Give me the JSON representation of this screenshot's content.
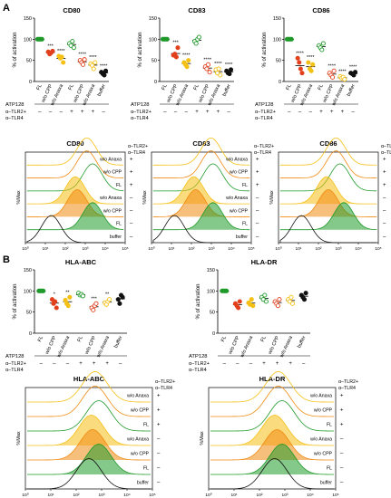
{
  "panels": [
    "A",
    "B"
  ],
  "colors": {
    "green": "#1f9a2a",
    "red": "#e2401c",
    "orange": "#f08a10",
    "yellow": "#f5c015",
    "black": "#111111"
  },
  "dot_ylabel": "% of activation",
  "hist_ylabel": "%Max",
  "conditions": [
    "FL",
    "w/o CPP",
    "w/o Anaxa",
    "FL",
    "w/o CPP",
    "w/o Anaxa",
    "buffer"
  ],
  "atp_label": "ATP128",
  "tlr_label": "α–TLR2+\nα–TLR4",
  "tlr_signs": [
    "–",
    "–",
    "–",
    "+",
    "+",
    "+",
    "–"
  ],
  "tick_labels_y": [
    "0",
    "50",
    "100",
    "150"
  ],
  "hist_x_ticks": [
    "10⁰",
    "10¹",
    "10²",
    "10³",
    "10⁴",
    "10⁵"
  ],
  "hist_rows": [
    "w/o Anaxa",
    "w/o CPP",
    "FL",
    "w/o Anaxa",
    "w/o CPP",
    "FL",
    "buffer"
  ],
  "hist_signs": [
    "+",
    "+",
    "+",
    "–",
    "–",
    "–",
    "–"
  ],
  "chart_data": [
    {
      "type": "scatter",
      "title": "CD80",
      "ylabel": "% of activation",
      "ylim": [
        0,
        150
      ],
      "categories": [
        "FL",
        "w/o CPP",
        "w/o Anaxa",
        "FL",
        "w/o CPP",
        "w/o Anaxa",
        "buffer"
      ],
      "series": [
        {
          "values": [
            [
              100,
              100,
              100,
              100
            ],
            [
              70,
              65,
              68,
              72
            ],
            [
              60,
              55,
              58,
              45
            ],
            [
              90,
              85,
              95,
              80
            ],
            [
              50,
              45,
              40,
              52
            ],
            [
              42,
              38,
              30,
              45
            ],
            [
              22,
              18,
              15,
              25
            ]
          ]
        }
      ],
      "significance": [
        "",
        "***",
        "****",
        "",
        "****",
        "****",
        "****"
      ]
    },
    {
      "type": "scatter",
      "title": "CD83",
      "ylabel": "% of activation",
      "ylim": [
        0,
        150
      ],
      "categories": [
        "FL",
        "w/o CPP",
        "w/o Anaxa",
        "FL",
        "w/o CPP",
        "w/o Anaxa",
        "buffer"
      ],
      "series": [
        {
          "values": [
            [
              100,
              100,
              100,
              100
            ],
            [
              62,
              65,
              58,
              80
            ],
            [
              45,
              40,
              35,
              50
            ],
            [
              95,
              90,
              100,
              105
            ],
            [
              35,
              30,
              40,
              22
            ],
            [
              28,
              20,
              30,
              15
            ],
            [
              25,
              20,
              18,
              28
            ]
          ]
        }
      ],
      "significance": [
        "",
        "***",
        "****",
        "",
        "****",
        "****",
        "****"
      ]
    },
    {
      "type": "scatter",
      "title": "CD86",
      "ylabel": "% of activation",
      "ylim": [
        0,
        150
      ],
      "categories": [
        "FL",
        "w/o CPP",
        "w/o Anaxa",
        "FL",
        "w/o CPP",
        "w/o Anaxa",
        "buffer"
      ],
      "series": [
        {
          "values": [
            [
              100,
              100,
              100,
              100
            ],
            [
              55,
              45,
              30,
              20
            ],
            [
              45,
              30,
              25,
              40
            ],
            [
              85,
              80,
              75,
              90
            ],
            [
              20,
              15,
              10,
              25
            ],
            [
              12,
              8,
              10,
              5
            ],
            [
              20,
              18,
              15,
              22
            ]
          ]
        }
      ],
      "significance": [
        "",
        "****",
        "****",
        "",
        "****",
        "****",
        "****"
      ]
    },
    {
      "type": "scatter",
      "title": "HLA-ABC",
      "ylabel": "% of activation",
      "ylim": [
        0,
        150
      ],
      "categories": [
        "FL",
        "w/o CPP",
        "w/o Anaxa",
        "FL",
        "w/o CPP",
        "w/o Anaxa",
        "buffer"
      ],
      "series": [
        {
          "values": [
            [
              100,
              100,
              100,
              100
            ],
            [
              80,
              70,
              75,
              60
            ],
            [
              78,
              70,
              65,
              85
            ],
            [
              95,
              90,
              92,
              88
            ],
            [
              60,
              55,
              65,
              70
            ],
            [
              72,
              68,
              75,
              80
            ],
            [
              80,
              70,
              90,
              85
            ]
          ]
        }
      ],
      "significance": [
        "",
        "*",
        "**",
        "",
        "***",
        "**",
        ""
      ]
    },
    {
      "type": "scatter",
      "title": "HLA-DR",
      "ylabel": "% of activation",
      "ylim": [
        0,
        150
      ],
      "categories": [
        "FL",
        "w/o CPP",
        "w/o Anaxa",
        "FL",
        "w/o CPP",
        "w/o Anaxa",
        "buffer"
      ],
      "series": [
        {
          "values": [
            [
              100,
              100,
              100,
              100
            ],
            [
              70,
              65,
              60,
              75
            ],
            [
              72,
              68,
              80,
              65
            ],
            [
              85,
              80,
              90,
              75
            ],
            [
              75,
              70,
              65,
              80
            ],
            [
              80,
              75,
              85,
              70
            ],
            [
              90,
              85,
              80,
              95
            ]
          ]
        }
      ],
      "significance": [
        "",
        "",
        "",
        "",
        "",
        "",
        ""
      ]
    }
  ],
  "histograms": [
    {
      "title": "CD80",
      "shifts": [
        0.62,
        0.62,
        0.68,
        0.5,
        0.52,
        0.68,
        0.25
      ]
    },
    {
      "title": "CD83",
      "shifts": [
        0.6,
        0.6,
        0.62,
        0.42,
        0.44,
        0.62,
        0.22
      ]
    },
    {
      "title": "CD86",
      "shifts": [
        0.58,
        0.58,
        0.62,
        0.48,
        0.5,
        0.66,
        0.22
      ]
    },
    {
      "title": "HLA-ABC",
      "shifts": [
        0.55,
        0.55,
        0.58,
        0.52,
        0.53,
        0.58,
        0.5
      ]
    },
    {
      "title": "HLA-DR",
      "shifts": [
        0.55,
        0.55,
        0.58,
        0.52,
        0.54,
        0.58,
        0.52
      ]
    }
  ]
}
